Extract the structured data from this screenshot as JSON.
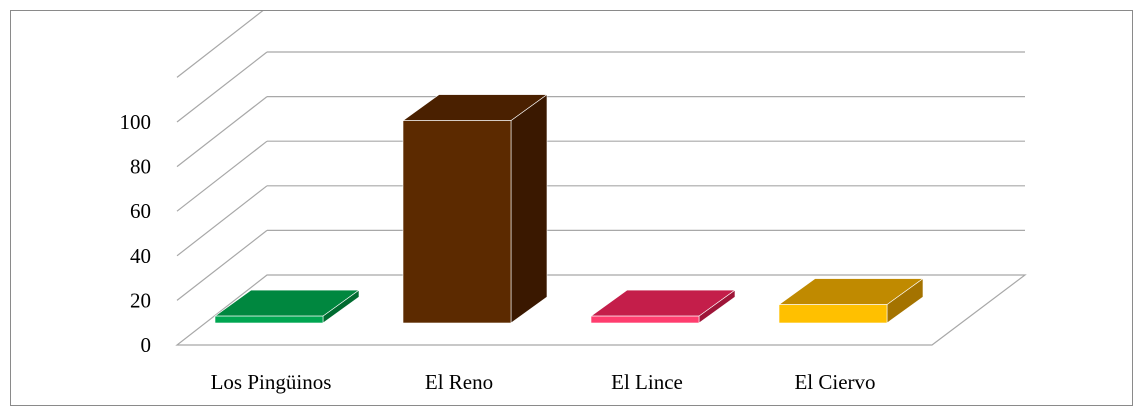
{
  "chart_data": {
    "type": "bar",
    "style": "3d-column",
    "categories": [
      "Los Pingüinos",
      "El Reno",
      "El Lince",
      "El Ciervo"
    ],
    "series": [
      {
        "values": [
          3,
          88,
          3,
          8
        ]
      }
    ],
    "colors": {
      "Los Pingüinos": {
        "front": "#00a651",
        "top": "#00873f",
        "side": "#006b30"
      },
      "El Reno": {
        "front": "#5c2a00",
        "top": "#4a2000",
        "side": "#3a1800"
      },
      "El Lince": {
        "front": "#ff3d6e",
        "top": "#c41e4a",
        "side": "#9e1538"
      },
      "El Ciervo": {
        "front": "#ffc000",
        "top": "#c08a00",
        "side": "#a47300"
      }
    },
    "y_ticks": [
      "0",
      "20",
      "40",
      "60",
      "80",
      "100"
    ],
    "ylim": [
      0,
      120
    ],
    "title": "",
    "xlabel": "",
    "ylabel": "",
    "grid": true,
    "legend": "none"
  }
}
